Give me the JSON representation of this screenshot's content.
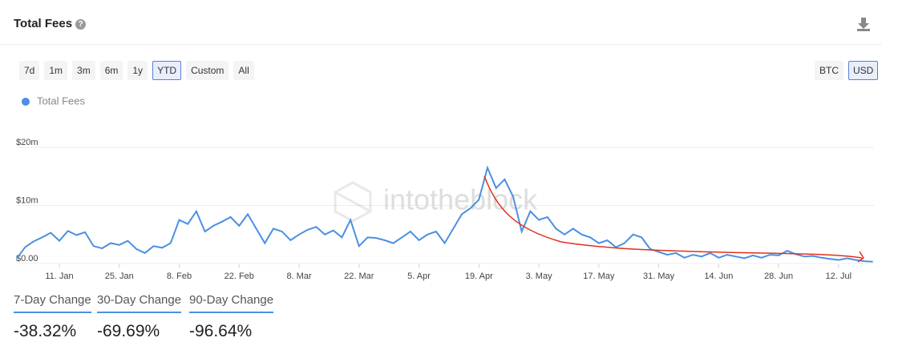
{
  "header": {
    "title": "Total Fees"
  },
  "range_buttons": [
    "7d",
    "1m",
    "3m",
    "6m",
    "1y",
    "YTD",
    "Custom",
    "All"
  ],
  "currency_buttons": [
    "BTC",
    "USD"
  ],
  "chart_data": {
    "type": "line",
    "watermark": "intotheblock",
    "series": [
      {
        "name": "Total Fees",
        "color": "#4a90e2",
        "values": [
          800000,
          2800000,
          3800000,
          4500000,
          5300000,
          3900000,
          5600000,
          4900000,
          5400000,
          3000000,
          2600000,
          3500000,
          3200000,
          3900000,
          2500000,
          1800000,
          3000000,
          2700000,
          3500000,
          7500000,
          6800000,
          9000000,
          5500000,
          6500000,
          7200000,
          8000000,
          6500000,
          8500000,
          6000000,
          3500000,
          6000000,
          5500000,
          4000000,
          5000000,
          5800000,
          6300000,
          5000000,
          5700000,
          4500000,
          7500000,
          3000000,
          4500000,
          4400000,
          4000000,
          3500000,
          4500000,
          5500000,
          4000000,
          5000000,
          5500000,
          3500000,
          6000000,
          8500000,
          9500000,
          11000000,
          16500000,
          13000000,
          14500000,
          11500000,
          5500000,
          9000000,
          7500000,
          8000000,
          6000000,
          5000000,
          6000000,
          5000000,
          4500000,
          3500000,
          4000000,
          2800000,
          3500000,
          5000000,
          4500000,
          2500000,
          2000000,
          1500000,
          1800000,
          1000000,
          1500000,
          1200000,
          1800000,
          1000000,
          1500000,
          1200000,
          900000,
          1400000,
          1000000,
          1500000,
          1400000,
          2200000,
          1600000,
          1200000,
          1300000,
          1000000,
          800000,
          600000,
          900000,
          600000,
          400000,
          300000
        ]
      }
    ],
    "x": [
      1,
      3,
      5,
      7,
      9,
      11,
      13,
      15,
      17,
      19,
      21,
      23,
      25,
      27,
      29,
      31,
      33,
      35,
      37,
      39,
      41,
      43,
      45,
      47,
      49,
      51,
      53,
      55,
      57,
      59,
      61,
      63,
      65,
      67,
      69,
      71,
      73,
      75,
      77,
      79,
      81,
      83,
      85,
      87,
      89,
      91,
      93,
      95,
      97,
      99,
      101,
      103,
      105,
      107,
      109,
      111,
      113,
      115,
      117,
      119,
      121,
      123,
      125,
      127,
      129,
      131,
      133,
      135,
      137,
      139,
      141,
      143,
      145,
      147,
      149,
      151,
      153,
      155,
      157,
      159,
      161,
      163,
      165,
      167,
      169,
      171,
      173,
      175,
      177,
      179,
      181,
      183,
      185,
      187,
      189,
      191,
      193,
      195,
      197,
      199,
      201
    ],
    "xlim": [
      1,
      201
    ],
    "xticks": [
      {
        "value": 11,
        "label": "11. Jan"
      },
      {
        "value": 25,
        "label": "25. Jan"
      },
      {
        "value": 39,
        "label": "8. Feb"
      },
      {
        "value": 53,
        "label": "22. Feb"
      },
      {
        "value": 67,
        "label": "8. Mar"
      },
      {
        "value": 81,
        "label": "22. Mar"
      },
      {
        "value": 95,
        "label": "5. Apr"
      },
      {
        "value": 109,
        "label": "19. Apr"
      },
      {
        "value": 123,
        "label": "3. May"
      },
      {
        "value": 137,
        "label": "17. May"
      },
      {
        "value": 151,
        "label": "31. May"
      },
      {
        "value": 165,
        "label": "14. Jun"
      },
      {
        "value": 179,
        "label": "28. Jun"
      },
      {
        "value": 193,
        "label": "12. Jul"
      }
    ],
    "ylim": [
      0,
      24000000
    ],
    "yticks": [
      {
        "value": 0,
        "label": "$0.00"
      },
      {
        "value": 10000000,
        "label": "$10m"
      },
      {
        "value": 20000000,
        "label": "$20m"
      }
    ],
    "grid": true
  },
  "stats": [
    {
      "label": "7-Day Change",
      "value": "-38.32%"
    },
    {
      "label": "30-Day Change",
      "value": "-69.69%"
    },
    {
      "label": "90-Day Change",
      "value": "-96.64%"
    }
  ]
}
